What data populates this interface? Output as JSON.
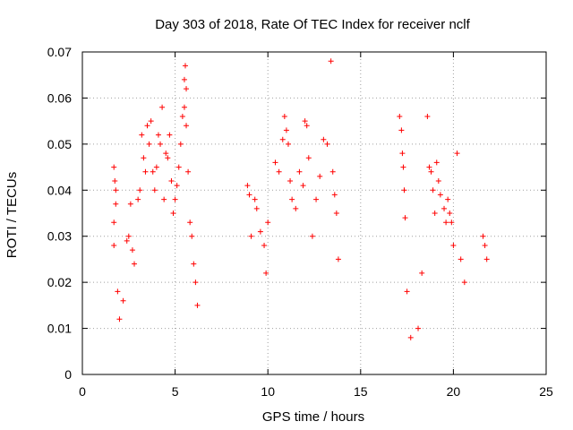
{
  "chart_data": {
    "type": "scatter",
    "title": "Day 303 of 2018, Rate Of TEC Index for receiver nclf",
    "xlabel": "GPS time / hours",
    "ylabel": "ROTI / TECUs",
    "xlim": [
      0,
      25
    ],
    "ylim": [
      0,
      0.07
    ],
    "x_ticks": [
      "0",
      "5",
      "10",
      "15",
      "20",
      "25"
    ],
    "y_ticks": [
      "0",
      "0.01",
      "0.02",
      "0.03",
      "0.04",
      "0.05",
      "0.06",
      "0.07"
    ],
    "grid": true,
    "marker": "+",
    "color": "#ff0000",
    "series": [
      {
        "points": [
          [
            1.7,
            0.045
          ],
          [
            1.75,
            0.042
          ],
          [
            1.8,
            0.04
          ],
          [
            1.7,
            0.033
          ],
          [
            1.7,
            0.028
          ],
          [
            1.8,
            0.037
          ],
          [
            1.9,
            0.018
          ],
          [
            2.0,
            0.012
          ],
          [
            2.2,
            0.016
          ],
          [
            2.4,
            0.029
          ],
          [
            2.5,
            0.03
          ],
          [
            2.6,
            0.037
          ],
          [
            2.7,
            0.027
          ],
          [
            2.8,
            0.024
          ],
          [
            3.0,
            0.038
          ],
          [
            3.1,
            0.04
          ],
          [
            3.2,
            0.052
          ],
          [
            3.3,
            0.047
          ],
          [
            3.4,
            0.044
          ],
          [
            3.5,
            0.054
          ],
          [
            3.6,
            0.05
          ],
          [
            3.7,
            0.055
          ],
          [
            3.8,
            0.044
          ],
          [
            3.9,
            0.04
          ],
          [
            4.0,
            0.045
          ],
          [
            4.1,
            0.052
          ],
          [
            4.2,
            0.05
          ],
          [
            4.3,
            0.058
          ],
          [
            4.4,
            0.038
          ],
          [
            4.5,
            0.048
          ],
          [
            4.6,
            0.047
          ],
          [
            4.7,
            0.052
          ],
          [
            4.8,
            0.042
          ],
          [
            4.9,
            0.035
          ],
          [
            5.0,
            0.038
          ],
          [
            5.1,
            0.041
          ],
          [
            5.2,
            0.045
          ],
          [
            5.3,
            0.05
          ],
          [
            5.4,
            0.056
          ],
          [
            5.5,
            0.058
          ],
          [
            5.5,
            0.064
          ],
          [
            5.55,
            0.067
          ],
          [
            5.6,
            0.062
          ],
          [
            5.6,
            0.054
          ],
          [
            5.7,
            0.044
          ],
          [
            5.8,
            0.033
          ],
          [
            5.9,
            0.03
          ],
          [
            6.0,
            0.024
          ],
          [
            6.1,
            0.02
          ],
          [
            6.2,
            0.015
          ],
          [
            8.9,
            0.041
          ],
          [
            9.0,
            0.039
          ],
          [
            9.1,
            0.03
          ],
          [
            9.3,
            0.038
          ],
          [
            9.4,
            0.036
          ],
          [
            9.6,
            0.031
          ],
          [
            9.8,
            0.028
          ],
          [
            9.9,
            0.022
          ],
          [
            10.0,
            0.033
          ],
          [
            10.4,
            0.046
          ],
          [
            10.6,
            0.044
          ],
          [
            10.8,
            0.051
          ],
          [
            10.9,
            0.056
          ],
          [
            11.0,
            0.053
          ],
          [
            11.1,
            0.05
          ],
          [
            11.2,
            0.042
          ],
          [
            11.3,
            0.038
          ],
          [
            11.5,
            0.036
          ],
          [
            11.7,
            0.044
          ],
          [
            11.9,
            0.041
          ],
          [
            12.0,
            0.055
          ],
          [
            12.1,
            0.054
          ],
          [
            12.2,
            0.047
          ],
          [
            12.4,
            0.03
          ],
          [
            12.6,
            0.038
          ],
          [
            12.8,
            0.043
          ],
          [
            13.0,
            0.051
          ],
          [
            13.2,
            0.05
          ],
          [
            13.4,
            0.068
          ],
          [
            13.5,
            0.044
          ],
          [
            13.6,
            0.039
          ],
          [
            13.7,
            0.035
          ],
          [
            13.8,
            0.025
          ],
          [
            17.1,
            0.056
          ],
          [
            17.2,
            0.053
          ],
          [
            17.25,
            0.048
          ],
          [
            17.3,
            0.045
          ],
          [
            17.35,
            0.04
          ],
          [
            17.4,
            0.034
          ],
          [
            17.5,
            0.018
          ],
          [
            17.7,
            0.008
          ],
          [
            18.1,
            0.01
          ],
          [
            18.3,
            0.022
          ],
          [
            18.6,
            0.056
          ],
          [
            18.7,
            0.045
          ],
          [
            18.8,
            0.044
          ],
          [
            18.9,
            0.04
          ],
          [
            19.0,
            0.035
          ],
          [
            19.1,
            0.046
          ],
          [
            19.2,
            0.042
          ],
          [
            19.3,
            0.039
          ],
          [
            19.5,
            0.036
          ],
          [
            19.6,
            0.033
          ],
          [
            19.7,
            0.038
          ],
          [
            19.8,
            0.035
          ],
          [
            19.9,
            0.033
          ],
          [
            20.0,
            0.028
          ],
          [
            20.2,
            0.048
          ],
          [
            20.4,
            0.025
          ],
          [
            20.6,
            0.02
          ],
          [
            21.6,
            0.03
          ],
          [
            21.7,
            0.028
          ],
          [
            21.8,
            0.025
          ]
        ]
      }
    ]
  }
}
